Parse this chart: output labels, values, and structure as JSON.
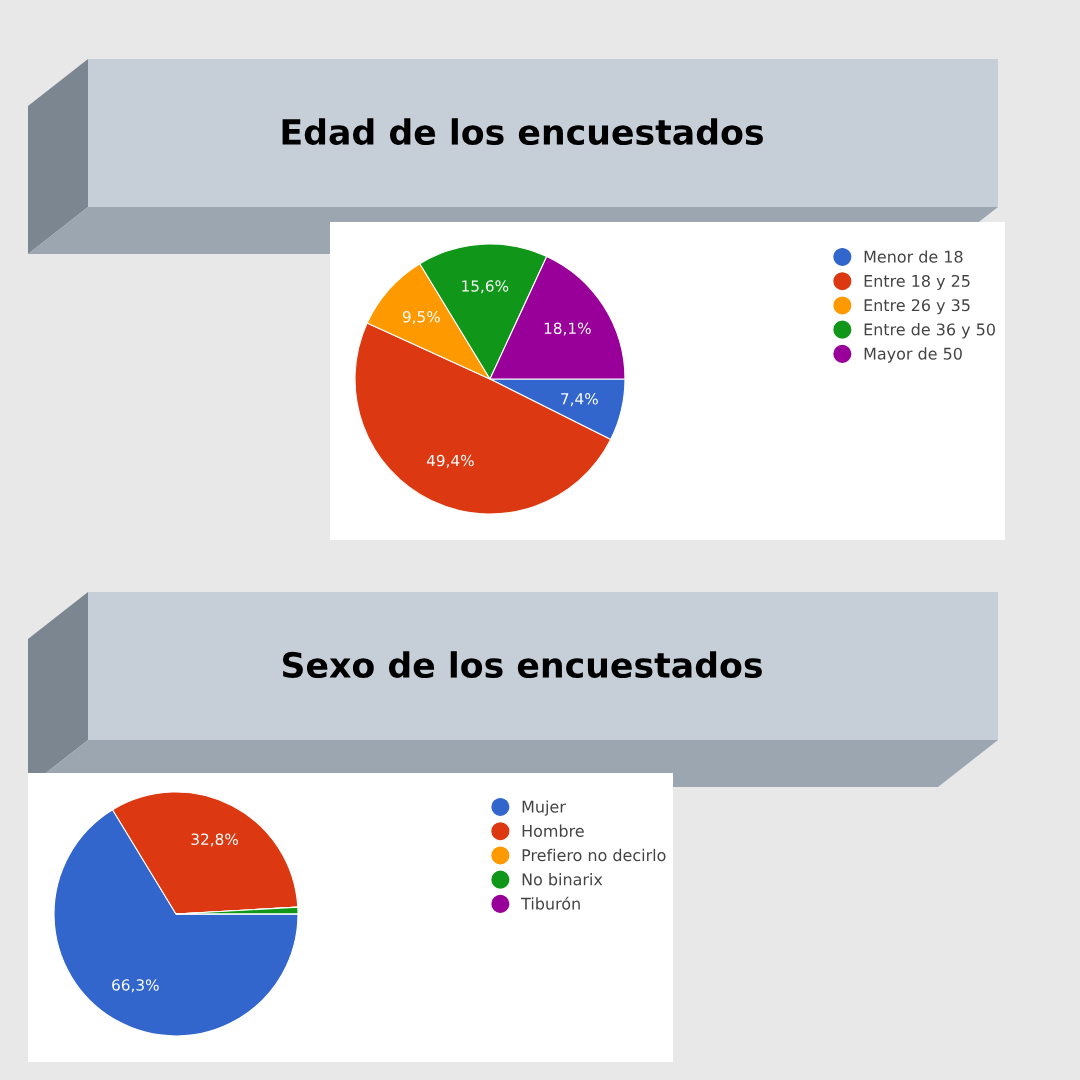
{
  "chart_data": [
    {
      "type": "pie",
      "title": "Edad de los encuestados",
      "categories": [
        "Menor de 18",
        "Entre 18 y 25",
        "Entre 26 y 35",
        "Entre de 36 y 50",
        "Mayor de 50"
      ],
      "values": [
        7.4,
        49.4,
        9.5,
        15.6,
        18.1
      ],
      "colors": [
        "#3366cc",
        "#dc3912",
        "#ff9900",
        "#109618",
        "#990099"
      ],
      "value_labels": [
        "7,4%",
        "49,4%",
        "9,5%",
        "15,6%",
        "18,1%"
      ],
      "legend": "right"
    },
    {
      "type": "pie",
      "title": "Sexo de los encuestados",
      "categories": [
        "Mujer",
        "Hombre",
        "Prefiero no decirlo",
        "No binarix",
        "Tiburón"
      ],
      "values": [
        66.3,
        32.8,
        null,
        0.9,
        null
      ],
      "colors": [
        "#3366cc",
        "#dc3912",
        "#ff9900",
        "#109618",
        "#990099"
      ],
      "value_labels": [
        "66,3%",
        "32,8%",
        null,
        null,
        null
      ],
      "legend": "right"
    }
  ]
}
